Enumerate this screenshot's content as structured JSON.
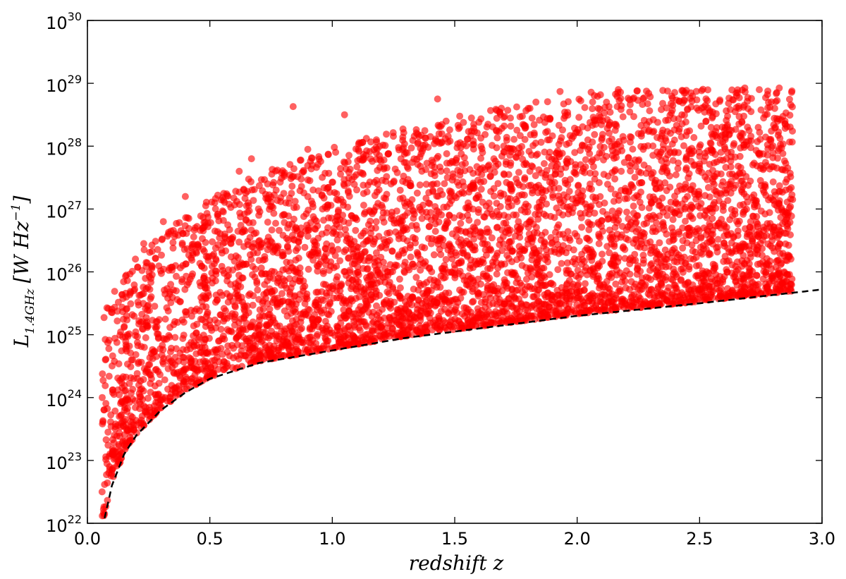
{
  "chart_data": {
    "type": "scatter",
    "xlabel": "redshift z",
    "ylabel": {
      "main": "L",
      "subscript": "1.4GHz",
      "unit_open": "[W Hz",
      "unit_sup": "−1",
      "unit_close": "]"
    },
    "xlim": [
      0.0,
      3.0
    ],
    "ylim_log10": [
      22,
      30
    ],
    "yscale": "log",
    "grid": false,
    "legend": "none",
    "x_ticks": [
      "0.0",
      "0.5",
      "1.0",
      "1.5",
      "2.0",
      "2.5",
      "3.0"
    ],
    "y_ticks": [
      {
        "base": "10",
        "exp": "22"
      },
      {
        "base": "10",
        "exp": "23"
      },
      {
        "base": "10",
        "exp": "24"
      },
      {
        "base": "10",
        "exp": "25"
      },
      {
        "base": "10",
        "exp": "26"
      },
      {
        "base": "10",
        "exp": "27"
      },
      {
        "base": "10",
        "exp": "28"
      },
      {
        "base": "10",
        "exp": "29"
      },
      {
        "base": "10",
        "exp": "30"
      }
    ],
    "series": [
      {
        "kind": "points",
        "color": "#ff0000",
        "sample_points": [
          [
            0.06,
            22.5
          ],
          [
            0.07,
            22.15
          ],
          [
            0.09,
            22.9
          ],
          [
            0.1,
            23.1
          ],
          [
            0.11,
            23.4
          ],
          [
            0.13,
            23.7
          ],
          [
            0.14,
            24.3
          ],
          [
            0.15,
            23.9
          ],
          [
            0.16,
            25.3
          ],
          [
            0.18,
            24.6
          ],
          [
            0.19,
            25.7
          ],
          [
            0.21,
            24.2
          ],
          [
            0.23,
            26.45
          ],
          [
            0.25,
            24.4
          ],
          [
            0.28,
            25.1
          ],
          [
            0.31,
            26.8
          ],
          [
            0.34,
            25.8
          ],
          [
            0.36,
            26.1
          ],
          [
            0.4,
            27.2
          ],
          [
            0.44,
            26.7
          ],
          [
            0.48,
            25.6
          ],
          [
            0.52,
            27.1
          ],
          [
            0.55,
            26.3
          ],
          [
            0.62,
            27.6
          ],
          [
            0.67,
            27.8
          ],
          [
            0.7,
            26.9
          ],
          [
            0.78,
            25.9
          ],
          [
            0.84,
            28.63
          ],
          [
            0.9,
            27.95
          ],
          [
            0.96,
            27.0
          ],
          [
            1.05,
            28.5
          ],
          [
            1.1,
            26.4
          ],
          [
            1.18,
            28.1
          ],
          [
            1.24,
            27.4
          ],
          [
            1.3,
            27.9
          ],
          [
            1.36,
            26.2
          ],
          [
            1.43,
            28.75
          ],
          [
            1.47,
            27.5
          ],
          [
            1.52,
            28.3
          ],
          [
            1.58,
            26.6
          ],
          [
            1.64,
            27.7
          ],
          [
            1.7,
            28.0
          ],
          [
            1.76,
            26.8
          ],
          [
            1.8,
            28.6
          ],
          [
            1.86,
            27.3
          ],
          [
            1.93,
            28.87
          ],
          [
            1.99,
            27.9
          ],
          [
            2.05,
            26.5
          ],
          [
            2.12,
            28.7
          ],
          [
            2.18,
            27.6
          ],
          [
            2.25,
            28.2
          ],
          [
            2.31,
            26.7
          ],
          [
            2.38,
            27.9
          ],
          [
            2.45,
            27.2
          ],
          [
            2.52,
            26.9
          ],
          [
            2.57,
            27.75
          ],
          [
            2.63,
            26.3
          ],
          [
            2.71,
            28.55
          ],
          [
            2.76,
            27.3
          ],
          [
            2.81,
            28.3
          ],
          [
            2.86,
            26.9
          ],
          [
            2.88,
            27.15
          ]
        ]
      },
      {
        "kind": "dashed_line",
        "color": "#000000",
        "curve": [
          [
            0.07,
            22.08
          ],
          [
            0.1,
            22.6
          ],
          [
            0.15,
            23.1
          ],
          [
            0.2,
            23.4
          ],
          [
            0.3,
            23.8
          ],
          [
            0.4,
            24.08
          ],
          [
            0.5,
            24.3
          ],
          [
            0.7,
            24.55
          ],
          [
            1.0,
            24.75
          ],
          [
            1.3,
            24.95
          ],
          [
            1.6,
            25.1
          ],
          [
            2.0,
            25.3
          ],
          [
            2.5,
            25.5
          ],
          [
            3.0,
            25.72
          ]
        ]
      }
    ]
  }
}
